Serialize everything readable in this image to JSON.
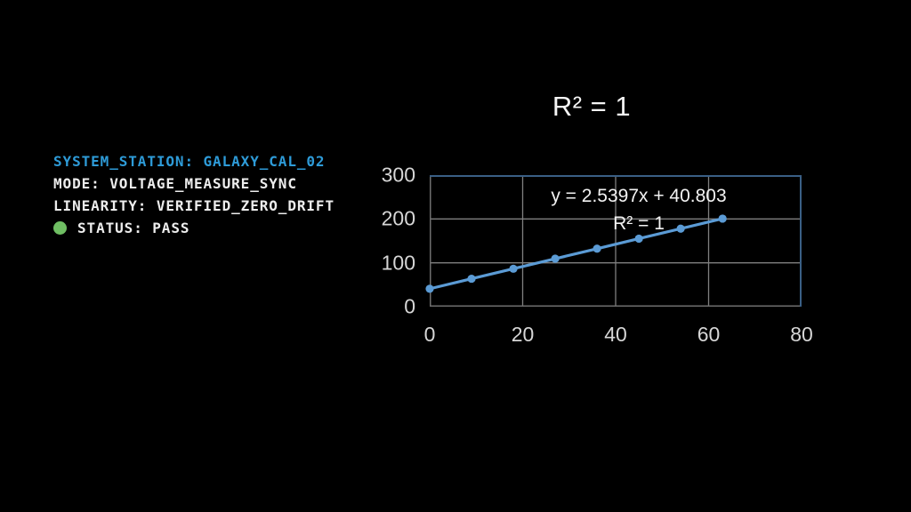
{
  "page": {
    "background": "#000000"
  },
  "info_panel": {
    "accent_color": "#2E9BD8",
    "text_color": "#EDEDED",
    "status_dot_color": "#6FBE63",
    "lines": [
      {
        "text": "SYSTEM_STATION: GALAXY_CAL_02"
      },
      {
        "text": "MODE: VOLTAGE_MEASURE_SYNC"
      },
      {
        "text": "LINEARITY: VERIFIED_ZERO_DRIFT"
      },
      {
        "text": "STATUS: PASS"
      }
    ]
  },
  "chart_data": {
    "type": "line",
    "title": "R² = 1",
    "equation": "y = 2.5397x + 40.803",
    "r_squared": "R² = 1",
    "x": [
      0,
      9,
      18,
      27,
      36,
      45,
      54,
      63
    ],
    "y": [
      40.8,
      63.7,
      86.5,
      109.4,
      132.2,
      155.1,
      177.9,
      200.8
    ],
    "xlim": [
      0,
      80
    ],
    "ylim": [
      0,
      300
    ],
    "x_ticks": [
      0,
      20,
      40,
      60,
      80
    ],
    "y_ticks": [
      0,
      100,
      200,
      300
    ],
    "grid": true,
    "legend": "none",
    "line_color": "#5B9BD5",
    "marker_color": "#5B9BD5",
    "marker_radius": 4.6,
    "line_width": 3.2,
    "gridline_color": "#7F7F7F",
    "axis_line_color": "#6E6E6E",
    "plot_border_color": "#3A5F85",
    "tick_label_color": "#D6D6D6",
    "title_color": "#F5F5F5",
    "annotation_color": "#F2F2F2"
  }
}
